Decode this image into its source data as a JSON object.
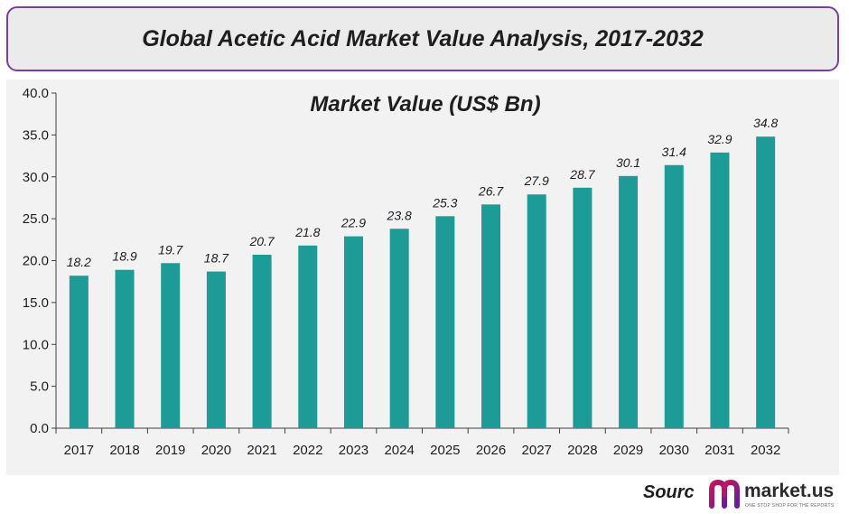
{
  "header": {
    "title": "Global Acetic Acid Market Value Analysis, 2017-2032"
  },
  "footer": {
    "source_label": "Sourc",
    "logo_text": "market.us",
    "logo_tagline": "ONE STOP SHOP FOR THE REPORTS"
  },
  "colors": {
    "bar": "#1d9b96",
    "accent": "#7b3fa0"
  },
  "chart_data": {
    "type": "bar",
    "title": "Market Value (US$ Bn)",
    "categories": [
      "2017",
      "2018",
      "2019",
      "2020",
      "2021",
      "2022",
      "2023",
      "2024",
      "2025",
      "2026",
      "2027",
      "2028",
      "2029",
      "2030",
      "2031",
      "2032"
    ],
    "values": [
      18.2,
      18.9,
      19.7,
      18.7,
      20.7,
      21.8,
      22.9,
      23.8,
      25.3,
      26.7,
      27.9,
      28.7,
      30.1,
      31.4,
      32.9,
      34.8
    ],
    "data_labels": [
      "18.2",
      "18.9",
      "19.7",
      "18.7",
      "20.7",
      "21.8",
      "22.9",
      "23.8",
      "25.3",
      "26.7",
      "27.9",
      "28.7",
      "30.1",
      "31.4",
      "32.9",
      "34.8"
    ],
    "ylim": [
      0,
      40
    ],
    "yticks": [
      "0.0",
      "5.0",
      "10.0",
      "15.0",
      "20.0",
      "25.0",
      "30.0",
      "35.0",
      "40.0"
    ],
    "grid": false,
    "legend": "none"
  }
}
